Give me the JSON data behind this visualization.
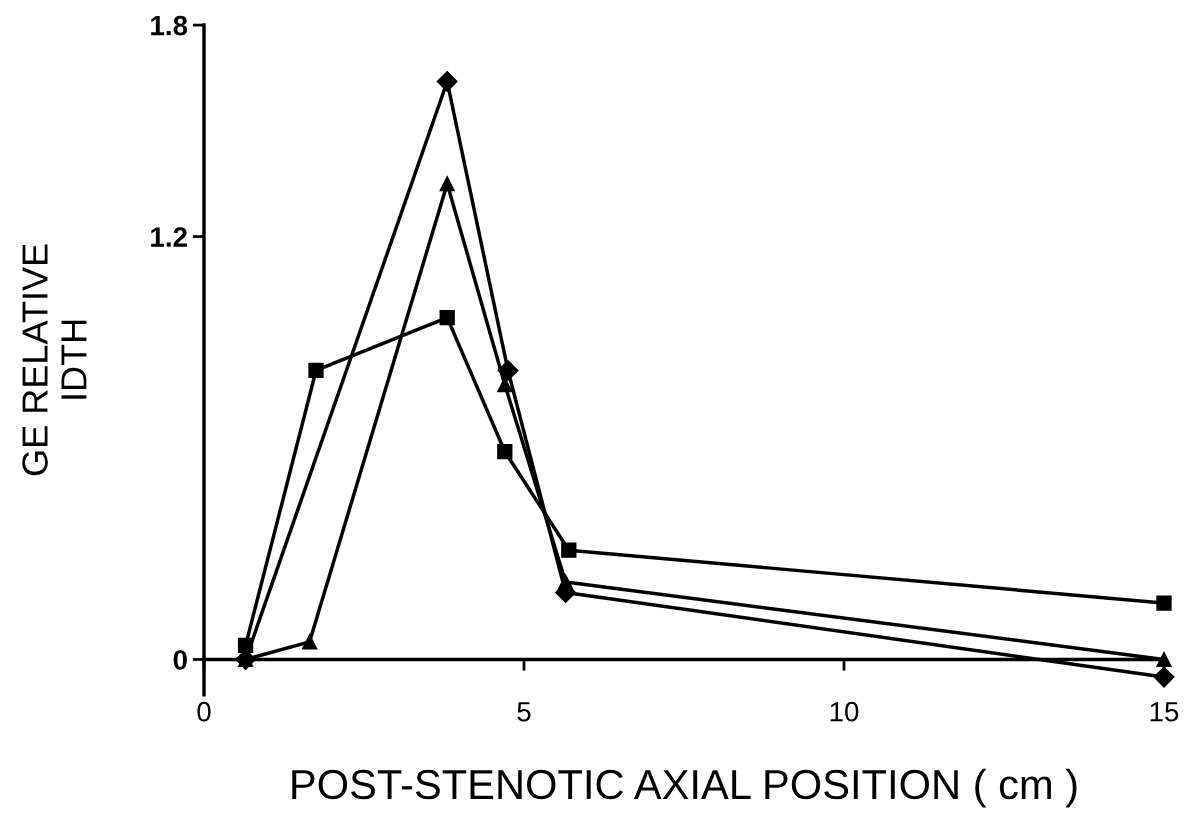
{
  "chart_data": {
    "type": "line",
    "xlabel": "POST-STENOTIC AXIAL POSITION ( cm )",
    "ylabel": "GE RELATIVE\nIDTH",
    "xlim": [
      0,
      15
    ],
    "xticks": [
      0,
      5,
      10,
      15
    ],
    "ylim": [
      -0.1,
      1.8
    ],
    "yticks": [
      0,
      1.2,
      1.8
    ],
    "grid": false,
    "legend": false,
    "line_style": "solid",
    "series": [
      {
        "color": "#000000",
        "marker": "square",
        "x": [
          0.65,
          1.75,
          3.8,
          4.7,
          5.7,
          15
        ],
        "values": [
          0.04,
          0.82,
          0.97,
          0.59,
          0.31,
          0.16
        ]
      },
      {
        "color": "#000000",
        "marker": "diamond",
        "x": [
          0.65,
          3.8,
          4.75,
          5.65,
          15
        ],
        "values": [
          0,
          1.64,
          0.82,
          0.19,
          -0.05
        ]
      },
      {
        "color": "#000000",
        "marker": "triangle",
        "x": [
          0.65,
          1.65,
          3.8,
          4.7,
          5.65,
          15
        ],
        "values": [
          0,
          0.05,
          1.35,
          0.78,
          0.22,
          0
        ]
      }
    ]
  }
}
